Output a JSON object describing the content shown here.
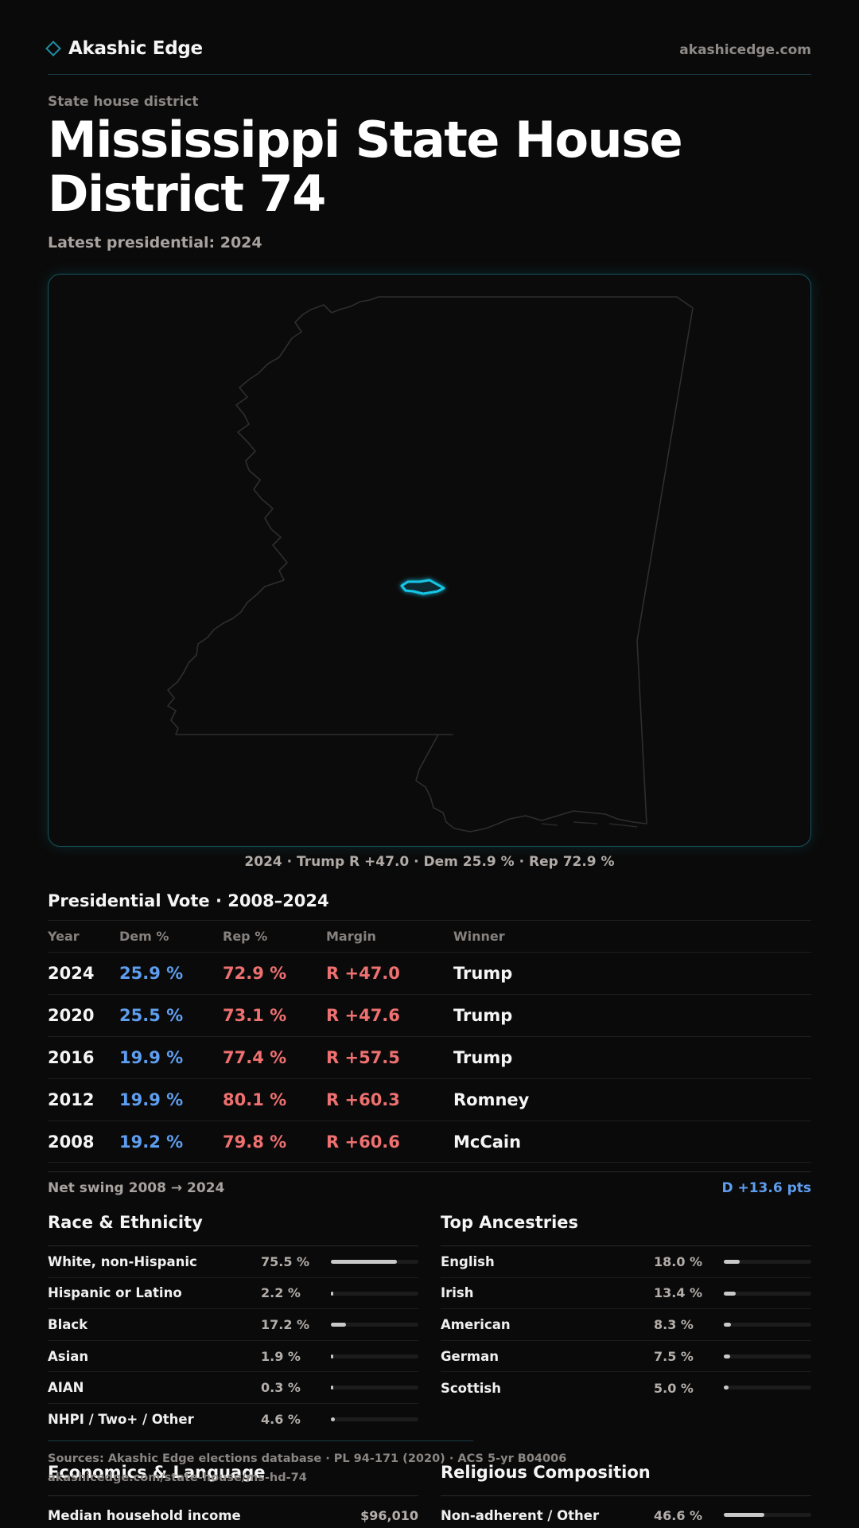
{
  "header": {
    "brand": "Akashic Edge",
    "site": "akashicedge.com"
  },
  "page": {
    "kicker": "State house district",
    "title": "Mississippi State House District 74",
    "subtitle": "Latest presidential: 2024"
  },
  "map": {
    "caption": "2024 · Trump R +47.0 · Dem 25.9 % · Rep 72.9 %",
    "highlight_color": "#17c6e6"
  },
  "vote_section": {
    "title": "Presidential Vote · 2008–2024",
    "columns": [
      "Year",
      "Dem %",
      "Rep %",
      "Margin",
      "Winner"
    ],
    "rows": [
      {
        "year": "2024",
        "dem": "25.9 %",
        "rep": "72.9 %",
        "margin": "R +47.0",
        "winner": "Trump"
      },
      {
        "year": "2020",
        "dem": "25.5 %",
        "rep": "73.1 %",
        "margin": "R +47.6",
        "winner": "Trump"
      },
      {
        "year": "2016",
        "dem": "19.9 %",
        "rep": "77.4 %",
        "margin": "R +57.5",
        "winner": "Trump"
      },
      {
        "year": "2012",
        "dem": "19.9 %",
        "rep": "80.1 %",
        "margin": "R +60.3",
        "winner": "Romney"
      },
      {
        "year": "2008",
        "dem": "19.2 %",
        "rep": "79.8 %",
        "margin": "R +60.6",
        "winner": "McCain"
      }
    ],
    "swing_label": "Net swing 2008 → 2024",
    "swing_value": "D +13.6 pts"
  },
  "race": {
    "title": "Race & Ethnicity",
    "items": [
      {
        "label": "White, non-Hispanic",
        "value": "75.5 %",
        "pct": 75.5
      },
      {
        "label": "Hispanic or Latino",
        "value": "2.2 %",
        "pct": 2.2
      },
      {
        "label": "Black",
        "value": "17.2 %",
        "pct": 17.2
      },
      {
        "label": "Asian",
        "value": "1.9 %",
        "pct": 1.9
      },
      {
        "label": "AIAN",
        "value": "0.3 %",
        "pct": 0.3
      },
      {
        "label": "NHPI / Two+ / Other",
        "value": "4.6 %",
        "pct": 4.6
      }
    ]
  },
  "ancestry": {
    "title": "Top Ancestries",
    "items": [
      {
        "label": "English",
        "value": "18.0 %",
        "pct": 18.0
      },
      {
        "label": "Irish",
        "value": "13.4 %",
        "pct": 13.4
      },
      {
        "label": "American",
        "value": "8.3 %",
        "pct": 8.3
      },
      {
        "label": "German",
        "value": "7.5 %",
        "pct": 7.5
      },
      {
        "label": "Scottish",
        "value": "5.0 %",
        "pct": 5.0
      }
    ]
  },
  "footer": {
    "sources": "Sources: Akashic Edge elections database · PL 94-171 (2020) · ACS 5-yr B04006",
    "url": "akashicedge.com/state-house/ms-hd-74"
  },
  "economics": {
    "title": "Economics & Language",
    "first_label": "Median household income",
    "first_value": "$96,010"
  },
  "religion": {
    "title": "Religious Composition",
    "first_label": "Non-adherent / Other",
    "first_value": "46.6 %",
    "first_pct": 46.6
  }
}
